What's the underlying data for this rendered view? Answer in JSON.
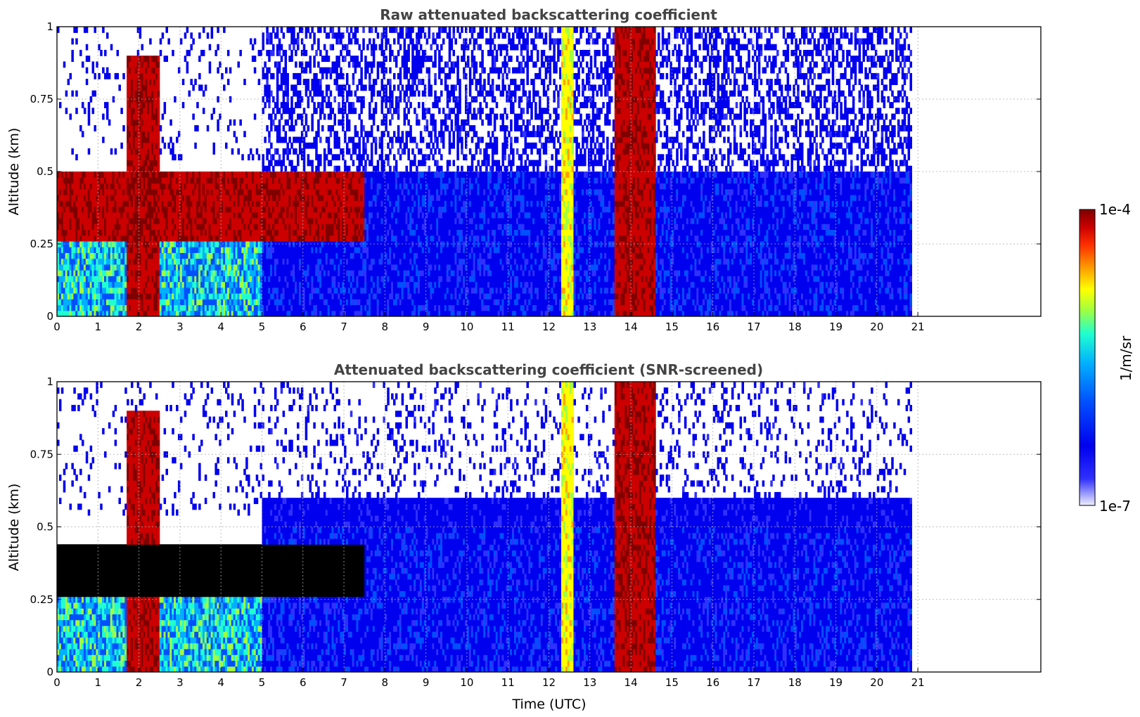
{
  "chart_data": [
    {
      "type": "heatmap",
      "title": "Raw attenuated backscattering coefficient",
      "xlabel": "",
      "ylabel": "Altitude (km)",
      "xlim": [
        0,
        24
      ],
      "ylim": [
        0,
        1
      ],
      "x_ticks": [
        "0",
        "1",
        "2",
        "3",
        "4",
        "5",
        "6",
        "7",
        "8",
        "9",
        "10",
        "11",
        "12",
        "13",
        "14",
        "15",
        "16",
        "17",
        "18",
        "19",
        "20",
        "21"
      ],
      "y_ticks": [
        "0",
        "0.25",
        "0.5",
        "0.75",
        "1"
      ],
      "data_extent_hours": [
        0,
        20.85
      ],
      "grid": true,
      "features": [
        {
          "name": "boundary-layer",
          "x_range": [
            0,
            7.5
          ],
          "altitude_range": [
            0.25,
            0.5
          ],
          "level": "high"
        },
        {
          "name": "precipitation-streak",
          "x_range": [
            1.7,
            2.5
          ],
          "altitude_range": [
            0,
            0.9
          ],
          "level": "high"
        },
        {
          "name": "precipitation-streak",
          "x_range": [
            12.3,
            12.6
          ],
          "altitude_range": [
            0,
            1.0
          ],
          "level": "medium"
        },
        {
          "name": "precipitation-streak",
          "x_range": [
            13.6,
            14.6
          ],
          "altitude_range": [
            0,
            1.0
          ],
          "level": "high"
        },
        {
          "name": "background",
          "x_range": [
            5,
            20.85
          ],
          "altitude_range": [
            0,
            0.5
          ],
          "level": "low"
        }
      ]
    },
    {
      "type": "heatmap",
      "title": "Attenuated backscattering coefficient (SNR-screened)",
      "xlabel": "Time (UTC)",
      "ylabel": "Altitude (km)",
      "xlim": [
        0,
        24
      ],
      "ylim": [
        0,
        1
      ],
      "x_ticks": [
        "0",
        "1",
        "2",
        "3",
        "4",
        "5",
        "6",
        "7",
        "8",
        "9",
        "10",
        "11",
        "12",
        "13",
        "14",
        "15",
        "16",
        "17",
        "18",
        "19",
        "20",
        "21"
      ],
      "y_ticks": [
        "0",
        "0.25",
        "0.5",
        "0.75",
        "1"
      ],
      "data_extent_hours": [
        0,
        20.85
      ],
      "grid": true,
      "features": [
        {
          "name": "saturated-layer",
          "x_range": [
            0,
            7.5
          ],
          "altitude_range": [
            0.25,
            0.45
          ],
          "level": "saturated"
        },
        {
          "name": "precipitation-streak",
          "x_range": [
            1.7,
            2.5
          ],
          "altitude_range": [
            0,
            0.9
          ],
          "level": "high"
        },
        {
          "name": "precipitation-streak",
          "x_range": [
            12.3,
            12.6
          ],
          "altitude_range": [
            0,
            1.0
          ],
          "level": "medium"
        },
        {
          "name": "precipitation-streak",
          "x_range": [
            13.6,
            14.6
          ],
          "altitude_range": [
            0,
            1.0
          ],
          "level": "high"
        },
        {
          "name": "background",
          "x_range": [
            5,
            20.85
          ],
          "altitude_range": [
            0,
            0.6
          ],
          "level": "low"
        }
      ]
    }
  ],
  "colorbar": {
    "max_label": "1e-4",
    "min_label": "1e-7",
    "units": "1/m/sr",
    "colormap": [
      "#eeeeff",
      "#3030ff",
      "#0000ee",
      "#0050ff",
      "#00b0ff",
      "#20ffd0",
      "#a0ff40",
      "#ffff00",
      "#ffa000",
      "#ff3000",
      "#cc0000",
      "#800000"
    ]
  }
}
